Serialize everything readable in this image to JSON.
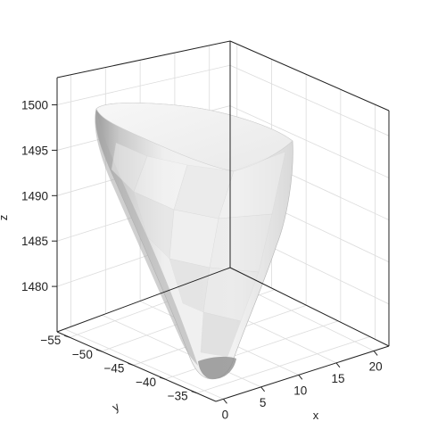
{
  "chart_data": {
    "type": "surface3d",
    "xlabel": "x",
    "ylabel": "y",
    "zlabel": "z",
    "x_ticks": [
      0,
      5,
      10,
      15,
      20
    ],
    "y_ticks": [
      -35,
      -40,
      -45,
      -50,
      -55
    ],
    "z_ticks": [
      1480,
      1485,
      1490,
      1495,
      1500
    ],
    "x_tick_labels": [
      "0",
      "5",
      "10",
      "15",
      "20"
    ],
    "y_tick_labels": [
      "−35",
      "−40",
      "−45",
      "−50",
      "−55"
    ],
    "z_tick_labels": [
      "1480",
      "1485",
      "1490",
      "1495",
      "1500"
    ],
    "xlim": [
      -1,
      22
    ],
    "ylim": [
      -57,
      -32
    ],
    "zlim": [
      1475,
      1503
    ],
    "grid": true,
    "surface_color": "#e6e6e6",
    "shadow_color": "#9a9a9a",
    "box_color": "#222222",
    "grid_color": "#dcdcdc"
  }
}
